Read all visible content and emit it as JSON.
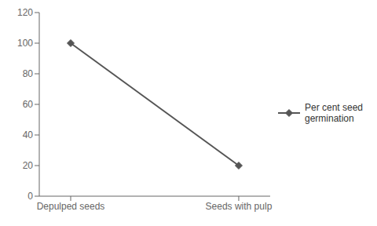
{
  "chart_data": {
    "type": "line",
    "categories": [
      "Depulped seeds",
      "Seeds with pulp"
    ],
    "series": [
      {
        "name": "Per cent seed\ngermination",
        "color": "#555555",
        "marker": "diamond",
        "values": [
          100,
          20
        ]
      }
    ],
    "ylim": [
      0,
      120
    ],
    "yticks": [
      0,
      20,
      40,
      60,
      80,
      100,
      120
    ],
    "grid": false,
    "legend": "right"
  }
}
